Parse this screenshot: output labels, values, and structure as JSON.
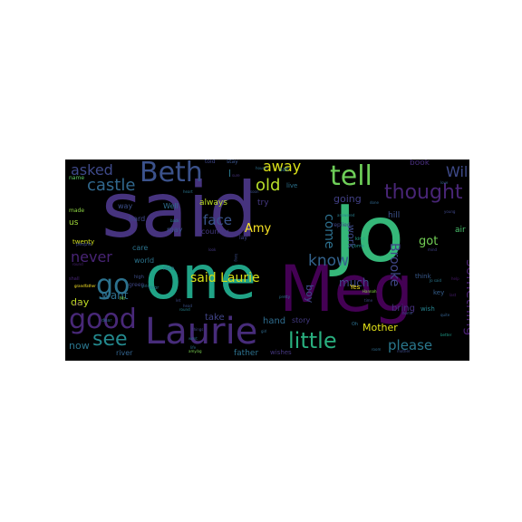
{
  "word_cloud": {
    "background_color": "#000000",
    "words": [
      {
        "text": "said",
        "color": "#46337e"
      },
      {
        "text": "Jo",
        "color": "#35b779"
      },
      {
        "text": "one",
        "color": "#20a386"
      },
      {
        "text": "Meg",
        "color": "#440154"
      },
      {
        "text": "Laurie",
        "color": "#472c7a"
      },
      {
        "text": "Beth",
        "color": "#3b528b"
      },
      {
        "text": "tell",
        "color": "#6ece58"
      },
      {
        "text": "thought",
        "color": "#482576"
      },
      {
        "text": "good",
        "color": "#482878"
      },
      {
        "text": "little",
        "color": "#29af7f"
      },
      {
        "text": "go",
        "color": "#2c728e"
      },
      {
        "text": "see",
        "color": "#23898e"
      },
      {
        "text": "asked",
        "color": "#3e4989"
      },
      {
        "text": "castle",
        "color": "#31688e"
      },
      {
        "text": "never",
        "color": "#482475"
      },
      {
        "text": "old",
        "color": "#b8de29"
      },
      {
        "text": "away",
        "color": "#dde318"
      },
      {
        "text": "Will",
        "color": "#3e4a89"
      },
      {
        "text": "know",
        "color": "#33638d"
      },
      {
        "text": "something",
        "color": "#481f70"
      },
      {
        "text": "please",
        "color": "#2a788e"
      },
      {
        "text": "face",
        "color": "#3a548c"
      },
      {
        "text": "Amy",
        "color": "#fde725"
      },
      {
        "text": "said Laurie",
        "color": "#d8e219"
      },
      {
        "text": "come",
        "color": "#2d708e"
      },
      {
        "text": "got",
        "color": "#73d056"
      },
      {
        "text": "Brooke",
        "color": "#404688"
      },
      {
        "text": "Mother",
        "color": "#e5e419"
      },
      {
        "text": "much",
        "color": "#3f4889"
      },
      {
        "text": "going",
        "color": "#424086"
      },
      {
        "text": "want",
        "color": "#2e6f8e"
      },
      {
        "text": "day",
        "color": "#c2df23"
      },
      {
        "text": "now",
        "color": "#2a768e"
      },
      {
        "text": "boy",
        "color": "#3d4d8a"
      },
      {
        "text": "work",
        "color": "#3e4c8a"
      },
      {
        "text": "take",
        "color": "#414487"
      },
      {
        "text": "hand",
        "color": "#2f6c8e"
      },
      {
        "text": "story",
        "color": "#443b84"
      },
      {
        "text": "book",
        "color": "#472d7b"
      },
      {
        "text": "hill",
        "color": "#3b518b"
      },
      {
        "text": "bring",
        "color": "#46307e"
      },
      {
        "text": "air",
        "color": "#4ac16d"
      },
      {
        "text": "think",
        "color": "#38598c"
      },
      {
        "text": "wish",
        "color": "#26828e"
      },
      {
        "text": "key",
        "color": "#355e8d"
      },
      {
        "text": "father",
        "color": "#2d718e"
      },
      {
        "text": "river",
        "color": "#33638d"
      },
      {
        "text": "wishes",
        "color": "#45377f"
      },
      {
        "text": "way",
        "color": "#3c4f8a"
      },
      {
        "text": "hard",
        "color": "#3f4788"
      },
      {
        "text": "care",
        "color": "#2c738e"
      },
      {
        "text": "world",
        "color": "#2b748e"
      },
      {
        "text": "may",
        "color": "#3b528b"
      },
      {
        "text": "Well",
        "color": "#2e6e8e"
      },
      {
        "text": "always",
        "color": "#bddf26"
      },
      {
        "text": "try",
        "color": "#453882"
      },
      {
        "text": "country",
        "color": "#443983"
      },
      {
        "text": "us",
        "color": "#a0da39"
      },
      {
        "text": "twenty",
        "color": "#d2e21b"
      },
      {
        "text": "green",
        "color": "#3f4788"
      },
      {
        "text": "sat",
        "color": "#2a768e"
      },
      {
        "text": "live",
        "color": "#2c728e"
      },
      {
        "text": "Yes",
        "color": "#fde725"
      },
      {
        "text": "replied",
        "color": "#404588"
      },
      {
        "text": "told",
        "color": "#3f4788"
      },
      {
        "text": "stay",
        "color": "#3a548c"
      },
      {
        "text": "made",
        "color": "#8fd744"
      },
      {
        "text": "name",
        "color": "#5ec962"
      },
      {
        "text": "lay",
        "color": "#404588"
      },
      {
        "text": "nice",
        "color": "#2e6e8e"
      },
      {
        "text": "high",
        "color": "#3d4e8a"
      },
      {
        "text": "Mr",
        "color": "#7ad151"
      },
      {
        "text": "dear",
        "color": "#31688e"
      },
      {
        "text": "shall",
        "color": "#482576"
      },
      {
        "text": "door",
        "color": "#287c8e"
      },
      {
        "text": "Oh",
        "color": "#2d708e"
      },
      {
        "text": "come",
        "color": "#21918c"
      },
      {
        "text": "kind",
        "color": "#22a785"
      },
      {
        "text": "grandfather",
        "color": "#fde725"
      },
      {
        "text": "people",
        "color": "#3e4989"
      },
      {
        "text": "pretty",
        "color": "#2c728e"
      },
      {
        "text": "round",
        "color": "#25848e"
      },
      {
        "text": "sure",
        "color": "#46327e"
      },
      {
        "text": "house",
        "color": "#2d708e"
      },
      {
        "text": "life",
        "color": "#2d718e"
      },
      {
        "text": "love",
        "color": "#33638d"
      },
      {
        "text": "last",
        "color": "#481d6f"
      },
      {
        "text": "mind",
        "color": "#414287"
      },
      {
        "text": "Jo said",
        "color": "#2a778e"
      },
      {
        "text": "home",
        "color": "#3a548c"
      },
      {
        "text": "quite",
        "color": "#34608d"
      },
      {
        "text": "done",
        "color": "#31688e"
      },
      {
        "text": "time",
        "color": "#3f4889"
      },
      {
        "text": "back",
        "color": "#26818e"
      },
      {
        "text": "things",
        "color": "#404688"
      },
      {
        "text": "look",
        "color": "#453882"
      },
      {
        "text": "girls",
        "color": "#2c728e"
      },
      {
        "text": "long",
        "color": "#3c4f8a"
      },
      {
        "text": "help",
        "color": "#48186a"
      },
      {
        "text": "answered",
        "color": "#287d8e"
      },
      {
        "text": "better",
        "color": "#1f9e89"
      },
      {
        "text": "let",
        "color": "#3e4c8a"
      },
      {
        "text": "head",
        "color": "#3b528b"
      },
      {
        "text": "girl",
        "color": "#2f6b8e"
      },
      {
        "text": "round",
        "color": "#482173"
      },
      {
        "text": "went",
        "color": "#2d708e"
      },
      {
        "text": "John",
        "color": "#471365"
      },
      {
        "text": "room",
        "color": "#2f6c8e"
      },
      {
        "text": "young",
        "color": "#3f4788"
      },
      {
        "text": "soon",
        "color": "#3b518b"
      },
      {
        "text": "heart",
        "color": "#2a768e"
      },
      {
        "text": "Hannah",
        "color": "#8bd646"
      },
      {
        "text": "mother",
        "color": "#3d4d8a"
      },
      {
        "text": "amy.bg",
        "color": "#7ad151"
      },
      {
        "text": "l",
        "color": "#2a788e"
      }
    ]
  }
}
